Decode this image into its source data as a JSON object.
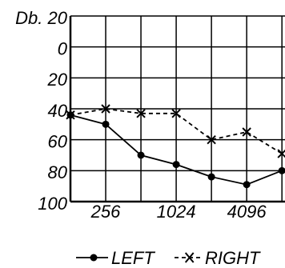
{
  "chart_data": {
    "type": "line",
    "x": [
      128,
      256,
      512,
      1024,
      2048,
      4096,
      8192
    ],
    "xscale": "log",
    "xlim": [
      128,
      8700
    ],
    "xticks": [
      256,
      1024,
      4096
    ],
    "xgrid": [
      128,
      256,
      512,
      1024,
      2048,
      4096,
      8192
    ],
    "ylim": [
      -20,
      100
    ],
    "y_inverted": true,
    "yticks": [
      {
        "value": -20,
        "label": "Db. 20"
      },
      0,
      20,
      40,
      60,
      80,
      100
    ],
    "grid": true,
    "legend": "bottom",
    "series": [
      {
        "name": "LEFT",
        "color": "#000000",
        "marker": "circle",
        "dashed": false,
        "values": [
          44,
          50,
          70,
          76,
          84,
          89,
          80
        ]
      },
      {
        "name": "RIGHT",
        "color": "#000000",
        "marker": "x",
        "dashed": true,
        "values": [
          44,
          40,
          43,
          43,
          60,
          55,
          69
        ]
      }
    ]
  }
}
